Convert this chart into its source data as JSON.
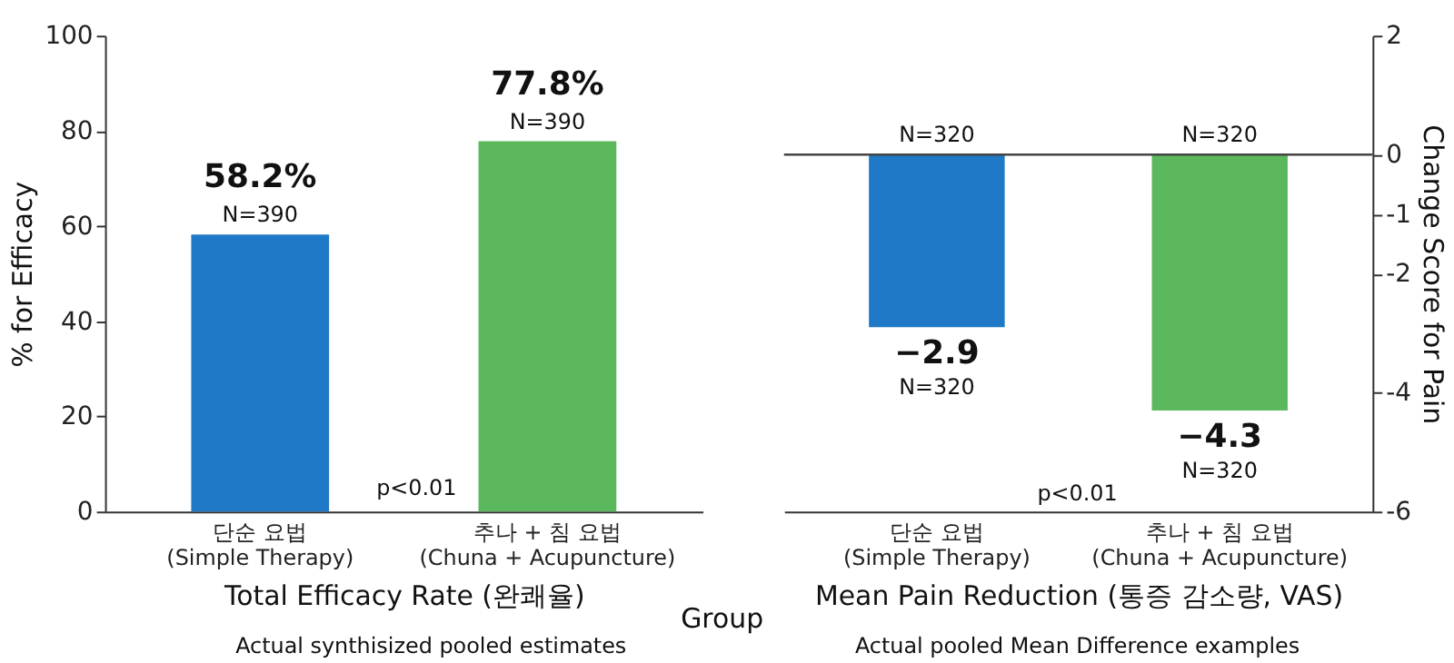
{
  "chart_data": [
    {
      "type": "bar",
      "xlabel": "Total Efficacy Rate (완쾌율)",
      "ylabel": "% for Efficacy",
      "categories": [
        "단순 요법\n(Simple Therapy)",
        "추나 + 침 요법\n(Chuna + Acupuncture)"
      ],
      "values": [
        58.2,
        77.8
      ],
      "colors": [
        "#2079c7",
        "#5cb85c"
      ],
      "value_labels": [
        "58.2%",
        "77.8%"
      ],
      "ylim": [
        0,
        100
      ],
      "yticks": [
        0,
        20,
        40,
        60,
        80,
        100
      ],
      "annotations": [
        {
          "text": "N=390",
          "x": "단순 요법\n(Simple Therapy)",
          "y": 58.2
        },
        {
          "text": "N=390",
          "x": "추나 + 침 요법\n(Chuna + Acupuncture)",
          "y": 77.8
        },
        "p<0.01",
        "Actual synthisized pooled estimates",
        "Group"
      ]
    },
    {
      "type": "bar",
      "xlabel": "Mean Pain Reduction (통증 감소량, VAS)",
      "y2label": "Change Score for Pain",
      "categories": [
        "단순 요법\n(Simple Therapy)",
        "추나 + 침 요법\n(Chuna + Acupuncture)"
      ],
      "values": [
        -2.9,
        -4.3
      ],
      "colors": [
        "#2079c7",
        "#5cb85c"
      ],
      "value_labels": [
        "−2.9",
        "−4.3"
      ],
      "y2lim": [
        -6,
        2
      ],
      "y2ticks": [
        -6,
        -4,
        -2,
        -1,
        0,
        2
      ],
      "ref_lines": [
        {
          "axis": "y2",
          "value": 0,
          "color": "#444444"
        }
      ],
      "annotations": [
        {
          "text": "N=320",
          "x": "단순 요법\n(Simple Therapy)",
          "y": 0
        },
        {
          "text": "N=320",
          "x": "추나 + 침 요법\n(Chuna + Acupuncture)",
          "y": 0
        },
        {
          "text": "N=320",
          "x": "단순 요법\n(Simple Therapy)",
          "y": -2.9
        },
        {
          "text": "N=320",
          "x": "추나 + 침 요법\n(Chuna + Acupuncture)",
          "y": -4.3
        },
        "p<0.01",
        "Actual pooled Mean Difference examples"
      ]
    }
  ]
}
